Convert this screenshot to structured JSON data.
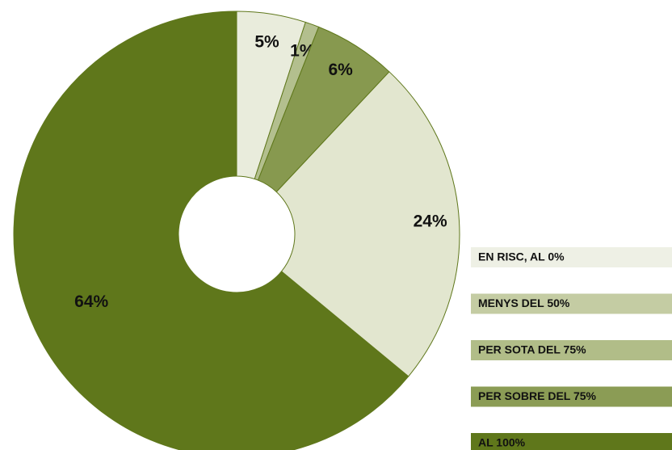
{
  "chart_data": {
    "type": "donut",
    "categories": [
      "EN RISC, AL 0%",
      "MENYS DEL 50%",
      "PER SOTA DEL 75%",
      "PER SOBRE DEL 75%",
      "AL 100%"
    ],
    "values": [
      5,
      1,
      6,
      24,
      64
    ],
    "value_labels": [
      "5%",
      "1%",
      "6%",
      "24%",
      "64%"
    ],
    "colors": [
      "#e9ecdc",
      "#b3bf8e",
      "#87994f",
      "#e2e6cf",
      "#5f771b"
    ],
    "legend_colors": [
      "#eef0e5",
      "#c4cca3",
      "#b1bd88",
      "#8b9c55",
      "#5f771b"
    ],
    "legend": "right"
  }
}
